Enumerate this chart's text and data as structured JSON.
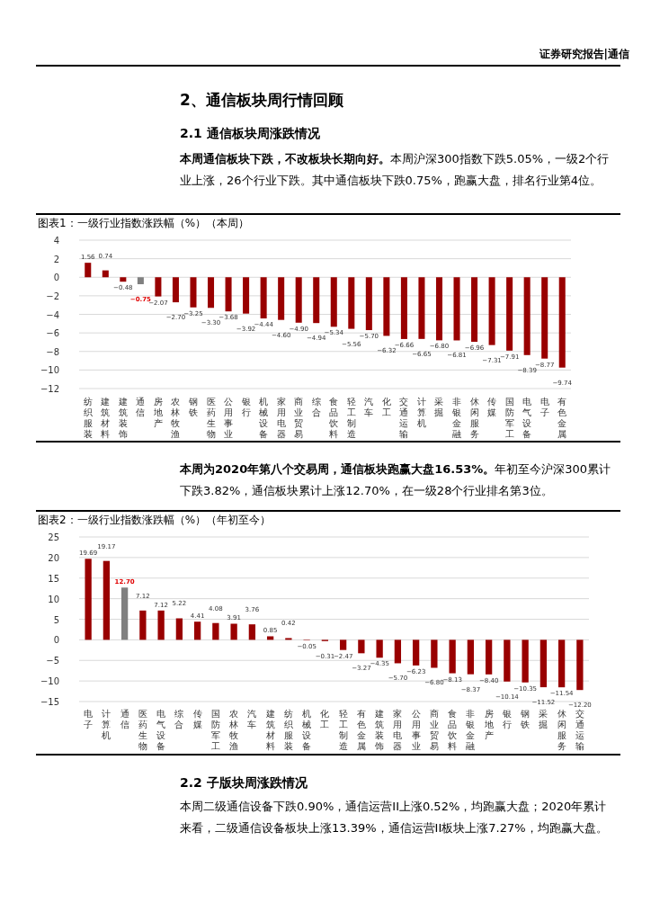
{
  "chart_data": [
    {
      "type": "bar",
      "title": "图表1：一级行业指数涨跌幅（%）（本周）",
      "annotations": [
        "证券研究报告|通信",
        "2、通信板块周行情回顾",
        "2.1 通信板块周涨跌情况",
        "本周通信板块下跌，不改板块长期向好。本周沪深300指数下跌5.05%，一级2个行业上涨，26个行业下跌。其中通信板块下跌0.75%，跑赢大盘，排名行业第4位。"
      ],
      "categories": [
        "纺织服装",
        "建筑材料",
        "建筑装饰",
        "通信",
        "房地产",
        "农林牧渔",
        "钢铁",
        "医药生物",
        "公用事业",
        "银行",
        "机械设备",
        "家用电器",
        "商业贸易",
        "综合",
        "食品饮料",
        "轻工制造",
        "汽车",
        "化工",
        "交通运输",
        "计算机",
        "采掘",
        "非银金融",
        "休闲服务",
        "传媒",
        "国防军工",
        "电气设备",
        "电子",
        "有色金属"
      ],
      "values": [
        1.56,
        0.74,
        -0.48,
        -0.75,
        -2.07,
        -2.7,
        -3.25,
        -3.3,
        -3.68,
        -3.92,
        -4.44,
        -4.6,
        -4.9,
        -4.94,
        -5.34,
        -5.56,
        -5.7,
        -6.32,
        -6.66,
        -6.65,
        -6.8,
        -6.81,
        -6.96,
        -7.31,
        -7.91,
        -8.39,
        -8.77,
        -9.74
      ],
      "colors": [
        "#990000",
        "#990000",
        "#990000",
        "#808080",
        "#990000",
        "#990000",
        "#990000",
        "#990000",
        "#990000",
        "#990000",
        "#990000",
        "#990000",
        "#990000",
        "#990000",
        "#990000",
        "#990000",
        "#990000",
        "#990000",
        "#990000",
        "#990000",
        "#990000",
        "#990000",
        "#990000",
        "#990000",
        "#990000",
        "#990000",
        "#990000",
        "#990000"
      ],
      "ylim": [
        -12,
        4
      ],
      "yticks": [
        -12,
        -10,
        -8,
        -6,
        -4,
        -2,
        0,
        2,
        4
      ],
      "grid": "y",
      "value_labels": [
        "1.56",
        "0.74",
        "−0.48",
        "−0.75",
        "−2.07",
        "−2.70",
        "−3.25",
        "−3.30",
        "−3.68",
        "−3.92",
        "−4.44",
        "−4.60",
        "−4.90",
        "−4.94",
        "−5.34",
        "−5.56",
        "−5.70",
        "−6.32",
        "−6.66",
        "−6.65",
        "−6.80",
        "−6.81",
        "−6.96",
        "−7.31",
        "−7.91",
        "−8.39",
        "−8.77",
        "−9.74"
      ]
    },
    {
      "type": "bar",
      "title": "图表2：一级行业指数涨跌幅（%）（年初至今）",
      "annotations": [
        "本周为2020年第八个交易周，通信板块跑赢大盘16.53%。年初至今沪深300累计下跌3.82%，通信板块累计上涨12.70%，在一级28个行业排名第3位。",
        "2.2 子版块周涨跌情况",
        "本周二级通信设备下跌0.90%，通信运营II上涨0.52%，均跑赢大盘；2020年累计来看，二级通信设备板块上涨13.39%，通信运营II板块上涨7.27%，均跑赢大盘。"
      ],
      "categories": [
        "电子",
        "计算机",
        "通信",
        "医药生物",
        "电气设备",
        "综合",
        "传媒",
        "国防军工",
        "农林牧渔",
        "汽车",
        "建筑材料",
        "纺织服装",
        "机械设备",
        "化工",
        "轻工制造",
        "有色金属",
        "建筑装饰",
        "家用电器",
        "公用事业",
        "商业贸易",
        "食品饮料",
        "非银金融",
        "房地产",
        "银行",
        "钢铁",
        "采掘",
        "休闲服务",
        "交通运输"
      ],
      "values": [
        19.69,
        19.17,
        12.7,
        7.12,
        7.12,
        5.22,
        4.41,
        4.08,
        3.91,
        3.76,
        0.85,
        0.42,
        -0.05,
        -0.31,
        -2.47,
        -3.27,
        -4.35,
        -5.7,
        -6.23,
        -6.8,
        -8.13,
        -8.37,
        -8.4,
        -10.14,
        -10.35,
        -11.52,
        -11.54,
        -12.2
      ],
      "colors": [
        "#990000",
        "#990000",
        "#808080",
        "#990000",
        "#990000",
        "#990000",
        "#990000",
        "#990000",
        "#990000",
        "#990000",
        "#990000",
        "#990000",
        "#990000",
        "#990000",
        "#990000",
        "#990000",
        "#990000",
        "#990000",
        "#990000",
        "#990000",
        "#990000",
        "#990000",
        "#990000",
        "#990000",
        "#990000",
        "#990000",
        "#990000",
        "#990000"
      ],
      "ylim": [
        -15,
        25
      ],
      "yticks": [
        -15,
        -10,
        -5,
        0,
        5,
        10,
        15,
        20,
        25
      ],
      "grid": "y",
      "value_labels": [
        "19.69",
        "19.17",
        "12.70",
        "7.12",
        "7.12",
        "5.22",
        "4.41",
        "4.08",
        "3.91",
        "3.76",
        "0.85",
        "0.42",
        "−0.05",
        "−0.31",
        "−2.47",
        "−3.27",
        "−4.35",
        "−5.70",
        "−6.23",
        "−6.80",
        "−8.13",
        "−8.37",
        "−8.40",
        "−10.14",
        "−10.35",
        "−11.52",
        "−11.54",
        "−12.20"
      ]
    }
  ]
}
